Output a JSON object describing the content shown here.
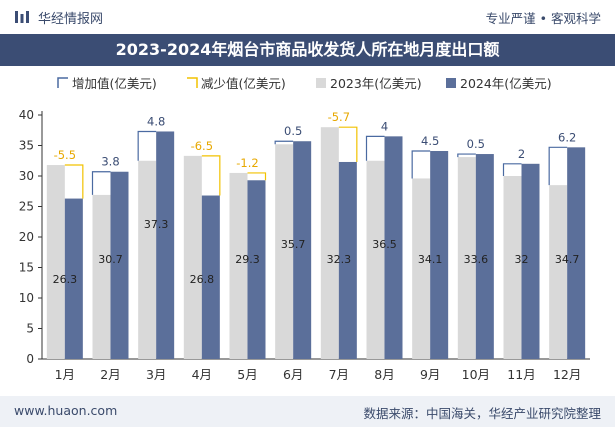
{
  "header": {
    "brand": "华经情报网",
    "tagline": "专业严谨 • 客观科学"
  },
  "footer": {
    "website": "www.huaon.com",
    "source": "数据来源：中国海关，华经产业研究院整理"
  },
  "colors": {
    "title_bg": "#3b4d74",
    "bar_2023": "#d9d9d9",
    "bar_2024": "#5b6f9a",
    "increase": "#4a6aa1",
    "decrease": "#f2c200",
    "label_increase": "#3b4d74",
    "label_decrease": "#e7a800"
  },
  "chart_data": {
    "type": "bar",
    "title": "2023-2024年烟台市商品收发货人所在地月度出口额",
    "categories": [
      "1月",
      "2月",
      "3月",
      "4月",
      "5月",
      "6月",
      "7月",
      "8月",
      "9月",
      "10月",
      "11月",
      "12月"
    ],
    "ylim": [
      0,
      40
    ],
    "yticks": [
      0,
      5,
      10,
      15,
      20,
      25,
      30,
      35,
      40
    ],
    "legend_position": "top",
    "grid": false,
    "series": [
      {
        "name": "2023年(亿美元)",
        "values": [
          31.8,
          26.9,
          32.5,
          33.3,
          30.5,
          35.2,
          38.0,
          32.5,
          29.6,
          33.1,
          30.0,
          28.5
        ]
      },
      {
        "name": "2024年(亿美元)",
        "values": [
          26.3,
          30.7,
          37.3,
          26.8,
          29.3,
          35.7,
          32.3,
          36.5,
          34.1,
          33.6,
          32.0,
          34.7
        ]
      }
    ],
    "change_series": [
      {
        "name": "增加值(亿美元)",
        "type": "increase"
      },
      {
        "name": "减少值(亿美元)",
        "type": "decrease"
      }
    ],
    "change_labels": [
      "-5.5",
      "3.8",
      "4.8",
      "-6.5",
      "-1.2",
      "0.5",
      "-5.7",
      "4",
      "4.5",
      "0.5",
      "2",
      "6.2"
    ],
    "value_labels_2024": [
      "26.3",
      "30.7",
      "37.3",
      "26.8",
      "29.3",
      "35.7",
      "32.3",
      "36.5",
      "34.1",
      "33.6",
      "32",
      "34.7"
    ]
  }
}
